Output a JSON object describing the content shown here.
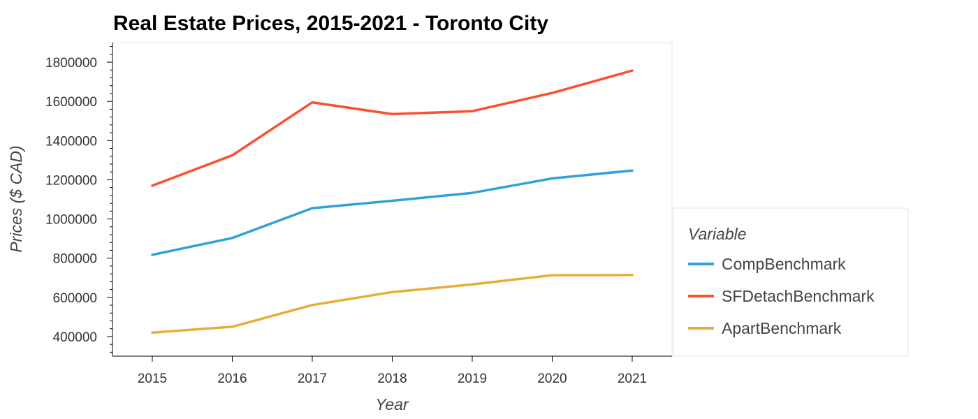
{
  "chart_data": {
    "type": "line",
    "title": "Real Estate Prices, 2015-2021 - Toronto City",
    "xlabel": "Year",
    "ylabel": "Prices ($ CAD)",
    "x": [
      "2015",
      "2016",
      "2017",
      "2018",
      "2019",
      "2020",
      "2021"
    ],
    "ylim": [
      300000,
      1900000
    ],
    "yticks": [
      "400000",
      "600000",
      "800000",
      "1000000",
      "1200000",
      "1400000",
      "1600000",
      "1800000"
    ],
    "grid": false,
    "legend": {
      "title": "Variable",
      "placement": "right"
    },
    "series": [
      {
        "name": "CompBenchmark",
        "color": "#30a2da",
        "values": [
          817000,
          903000,
          1055000,
          1093000,
          1133000,
          1207000,
          1247000
        ]
      },
      {
        "name": "SFDetachBenchmark",
        "color": "#fc4f30",
        "values": [
          1170000,
          1325000,
          1595000,
          1535000,
          1550000,
          1643000,
          1757000
        ]
      },
      {
        "name": "ApartBenchmark",
        "color": "#e5ae38",
        "values": [
          420000,
          450000,
          561000,
          627000,
          666000,
          713000,
          714000
        ]
      }
    ]
  }
}
